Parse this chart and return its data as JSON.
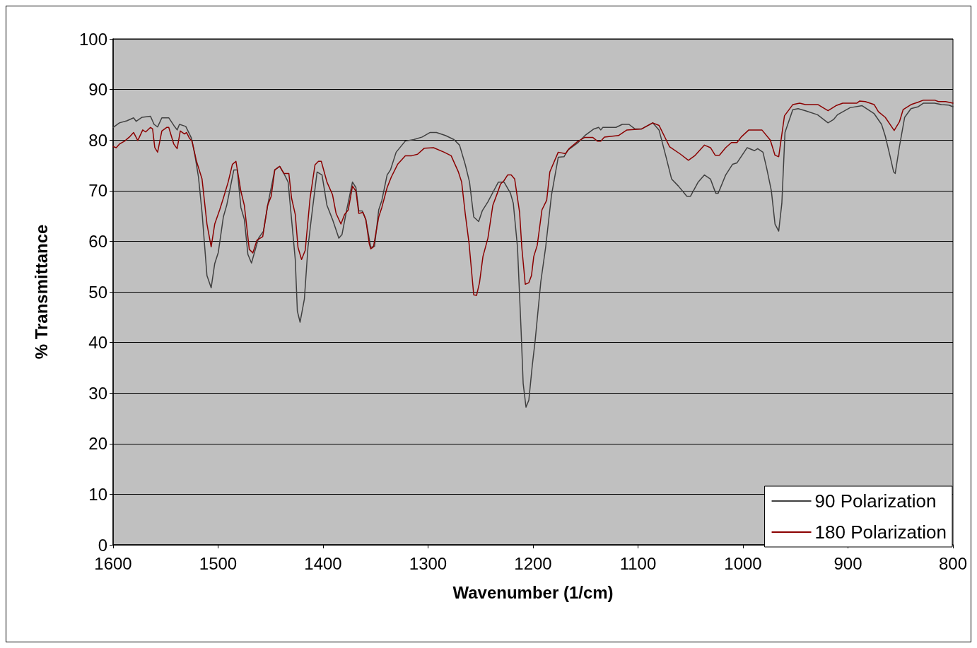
{
  "chart_data": {
    "type": "line",
    "xlabel": "Wavenumber (1/cm)",
    "ylabel": "% Transmittance",
    "xlim": [
      1600,
      800
    ],
    "xticks": [
      1600,
      1500,
      1400,
      1300,
      1200,
      1100,
      1000,
      900,
      800
    ],
    "ylim": [
      0,
      100
    ],
    "yticks": [
      0,
      10,
      20,
      30,
      40,
      50,
      60,
      70,
      80,
      90,
      100
    ],
    "grid": "y",
    "legend": "bottom right",
    "marker": "none",
    "line_style": "solid",
    "series": [
      {
        "name": "90 Polarization",
        "color": "#404040",
        "x": [
          1600,
          1594,
          1587,
          1580.5,
          1578,
          1572.4,
          1564.4,
          1561,
          1557.6,
          1553.6,
          1547,
          1542.2,
          1539,
          1536.8,
          1530.8,
          1525.4,
          1522,
          1518.7,
          1515.3,
          1510.6,
          1506.6,
          1503.2,
          1499.8,
          1495,
          1491.8,
          1485,
          1481.7,
          1478.3,
          1475,
          1471.6,
          1468.2,
          1461.5,
          1456.8,
          1452.8,
          1446,
          1441.3,
          1436.6,
          1433.3,
          1430,
          1426.5,
          1424.5,
          1421.9,
          1417.8,
          1414.4,
          1411,
          1405.7,
          1401,
          1396.3,
          1391,
          1385,
          1382,
          1377.5,
          1372,
          1368.7,
          1366,
          1362.7,
          1359.3,
          1354.6,
          1351,
          1347,
          1344,
          1339,
          1335.8,
          1330.4,
          1321.7,
          1313.6,
          1305.6,
          1298,
          1292,
          1283.4,
          1275.3,
          1270,
          1264.5,
          1260.5,
          1256.5,
          1251.8,
          1248.4,
          1243,
          1237.6,
          1233,
          1227.6,
          1221.5,
          1218.8,
          1214.8,
          1211.4,
          1209.4,
          1206.7,
          1204,
          1200.7,
          1198,
          1192.6,
          1188,
          1182.5,
          1176,
          1170.5,
          1167,
          1157.6,
          1150,
          1142,
          1137.5,
          1135.5,
          1133.5,
          1121,
          1115,
          1108.6,
          1103,
          1096.5,
          1086,
          1080,
          1073.6,
          1068,
          1061.5,
          1053.5,
          1050,
          1042.7,
          1036.7,
          1031,
          1026,
          1023.6,
          1016.5,
          1010,
          1005.7,
          996,
          989,
          986,
          981,
          977.5,
          973,
          969.5,
          966,
          963,
          960,
          952.6,
          947.5,
          940.5,
          929,
          919,
          913.5,
          910,
          898,
          886.5,
          875,
          868,
          864.5,
          860,
          856.5,
          855,
          851,
          846,
          840,
          833,
          828,
          817.5,
          811,
          804,
          800
        ],
        "values": [
          82.5,
          83.4,
          83.8,
          84.4,
          83.7,
          84.5,
          84.7,
          83.1,
          82.6,
          84.4,
          84.4,
          82.9,
          82,
          83.1,
          82.7,
          80.4,
          76.9,
          72.7,
          65.7,
          53.2,
          50.8,
          55.6,
          57.8,
          64.8,
          67.1,
          74.1,
          74.1,
          66.7,
          64.3,
          57.4,
          55.7,
          60.6,
          62,
          67.1,
          74.1,
          74.8,
          73.1,
          71.7,
          64.3,
          56.4,
          46.2,
          44,
          48.6,
          58.8,
          64.8,
          73.7,
          73.1,
          67.1,
          64.3,
          60.6,
          61.3,
          66.2,
          71.7,
          70.6,
          66,
          66,
          64.3,
          58.8,
          59,
          66.2,
          68.1,
          73.1,
          74.1,
          77.6,
          79.8,
          80.1,
          80.6,
          81.5,
          81.5,
          80.9,
          80.1,
          79,
          75.1,
          71.7,
          64.8,
          63.9,
          66,
          67.8,
          69.9,
          71.7,
          71.7,
          69.5,
          67.5,
          58.8,
          42.5,
          31.9,
          27.2,
          28.6,
          35.5,
          40.3,
          52,
          58.8,
          69,
          76.6,
          76.7,
          78,
          79.4,
          81,
          82.2,
          82.5,
          82,
          82.5,
          82.5,
          83.1,
          83.1,
          82.2,
          82.2,
          83.4,
          82,
          76.9,
          72.3,
          70.9,
          68.9,
          68.9,
          71.7,
          73.1,
          72.3,
          69.5,
          69.5,
          73.1,
          75.2,
          75.5,
          78.5,
          77.9,
          78.3,
          77.6,
          74.5,
          70,
          63.4,
          62,
          67.5,
          81.5,
          86,
          86.2,
          85.8,
          85,
          83.4,
          84.1,
          85,
          86.4,
          86.8,
          85.2,
          83.1,
          80.8,
          76.9,
          73.7,
          73.4,
          78.7,
          84.5,
          86.2,
          86.6,
          87.3,
          87.3,
          87,
          86.9,
          86.6
        ]
      },
      {
        "name": "180 Polarization",
        "color": "#8b0000",
        "x": [
          1600,
          1597,
          1594,
          1589,
          1584.5,
          1580.5,
          1576.5,
          1571.8,
          1569,
          1564.4,
          1562.4,
          1560.3,
          1557.6,
          1553.6,
          1549,
          1547,
          1542.2,
          1539,
          1536,
          1532,
          1530,
          1527.4,
          1524.7,
          1520.7,
          1515.3,
          1510.6,
          1506.6,
          1503.2,
          1498.5,
          1495,
          1490.4,
          1486.4,
          1483,
          1478.3,
          1475,
          1470.3,
          1466.9,
          1463,
          1457.5,
          1452.8,
          1449.4,
          1446,
          1441.3,
          1437.3,
          1432.6,
          1430,
          1426.5,
          1423.9,
          1420.5,
          1417,
          1412.4,
          1407.7,
          1404.4,
          1401.7,
          1396.3,
          1391,
          1387.6,
          1383,
          1379.5,
          1376,
          1372,
          1368.7,
          1366,
          1362,
          1359.3,
          1356,
          1354.6,
          1352,
          1347,
          1344,
          1339,
          1335,
          1329,
          1321.7,
          1315.6,
          1310,
          1303.5,
          1294.8,
          1284.7,
          1278,
          1271.3,
          1268,
          1264.5,
          1261,
          1256.5,
          1253.8,
          1251,
          1247.7,
          1243,
          1238.3,
          1234,
          1231,
          1227.6,
          1224.2,
          1220.8,
          1217.5,
          1212.8,
          1210.7,
          1207.4,
          1204,
          1201.5,
          1199.3,
          1196,
          1191.5,
          1187,
          1184,
          1176,
          1169,
          1165.7,
          1157.6,
          1151,
          1143,
          1138.8,
          1135.5,
          1132,
          1118.6,
          1110.6,
          1096.5,
          1086,
          1080,
          1070,
          1059.5,
          1052,
          1046,
          1036.7,
          1031,
          1026.5,
          1022.5,
          1016.5,
          1011,
          1005.7,
          1001.7,
          994.5,
          982,
          974,
          969.5,
          966,
          960.5,
          952.6,
          946,
          940.5,
          928.5,
          919,
          911.5,
          905,
          891.5,
          889,
          883.5,
          875,
          871,
          864.5,
          856,
          851,
          847.5,
          840,
          833,
          828,
          817.5,
          814,
          807,
          800
        ],
        "values": [
          78.7,
          78.5,
          79.2,
          79.8,
          80.6,
          81.5,
          79.9,
          82,
          81.6,
          82.5,
          82.2,
          78.5,
          77.6,
          81.8,
          82.5,
          82.5,
          79.2,
          78.3,
          81.8,
          81.2,
          81.5,
          80.4,
          79.7,
          75.9,
          72.3,
          63.4,
          58.9,
          63.4,
          66.2,
          68.5,
          71.7,
          75.2,
          75.8,
          69.9,
          67.1,
          58.4,
          57.7,
          60.2,
          60.9,
          67.1,
          68.9,
          74.1,
          74.8,
          73.4,
          73.4,
          68.5,
          65.3,
          58.8,
          56.4,
          58.2,
          68.5,
          75.1,
          75.8,
          75.8,
          71.7,
          69.2,
          65.5,
          63.4,
          65.3,
          66.2,
          70.9,
          69.9,
          65.5,
          65.7,
          64.3,
          59.5,
          58.5,
          58.9,
          64.8,
          66.7,
          70.6,
          72.7,
          75.2,
          76.9,
          76.9,
          77.2,
          78.4,
          78.5,
          77.6,
          76.9,
          73.8,
          71.7,
          65.3,
          59.7,
          49.4,
          49.3,
          51.8,
          57,
          60.6,
          67.1,
          69.5,
          71.3,
          72,
          73.1,
          73.1,
          72.3,
          65.7,
          58.8,
          51.5,
          51.8,
          53.2,
          57,
          59.2,
          66.2,
          68.1,
          73.7,
          77.6,
          77.3,
          78.3,
          79.7,
          80.5,
          80.5,
          79.8,
          79.8,
          80.6,
          80.9,
          82,
          82.2,
          83.4,
          82.9,
          78.7,
          77.2,
          76,
          76.9,
          79,
          78.5,
          77,
          77,
          78.5,
          79.5,
          79.5,
          80.6,
          82,
          82,
          80,
          77,
          76.7,
          84.8,
          87,
          87.3,
          87,
          87,
          85.8,
          86.8,
          87.3,
          87.3,
          87.7,
          87.6,
          87,
          85.6,
          84.5,
          81.9,
          83.6,
          86,
          87,
          87.5,
          87.9,
          87.9,
          87.6,
          87.6,
          87.3
        ]
      }
    ]
  }
}
